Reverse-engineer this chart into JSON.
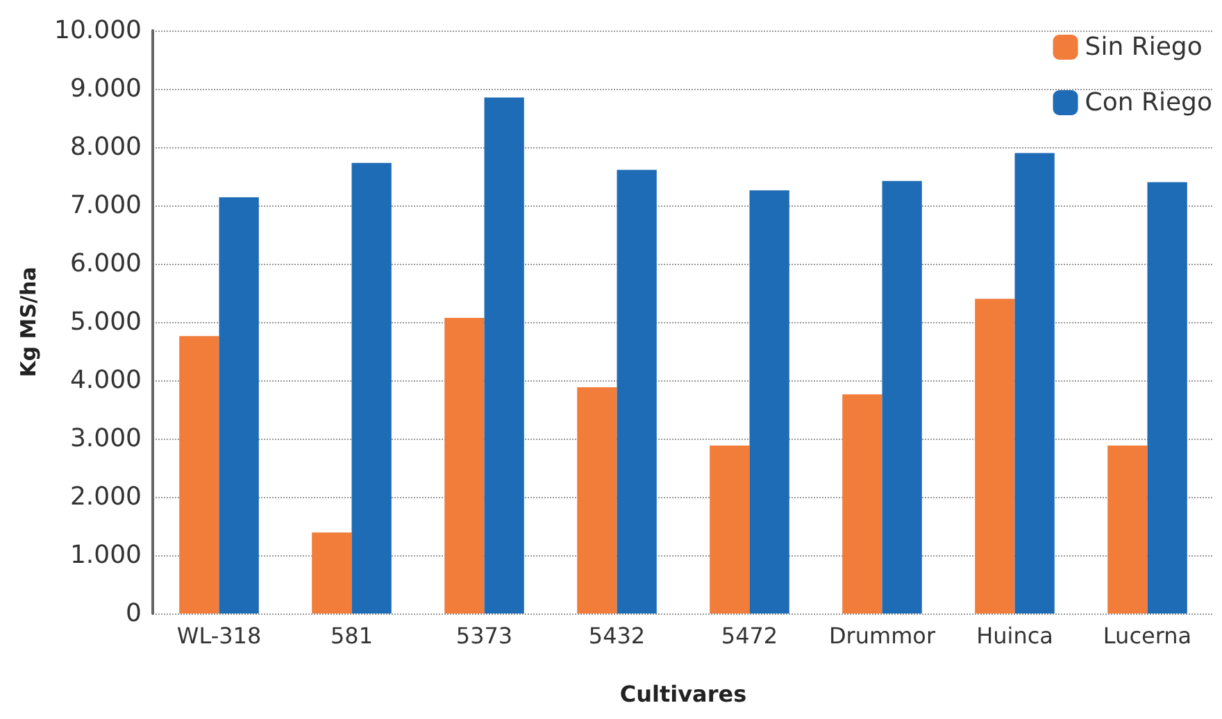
{
  "chart_data": {
    "type": "bar",
    "xlabel": "Cultivares",
    "ylabel": "Kg MS/ha",
    "categories": [
      "WL-318",
      "581",
      "5373",
      "5432",
      "5472",
      "Drummor",
      "Huinca",
      "Lucerna"
    ],
    "series": [
      {
        "name": "Sin Riego",
        "color": "#f27c3a",
        "values": [
          4760,
          1390,
          5070,
          3880,
          2880,
          3760,
          5400,
          2880
        ]
      },
      {
        "name": "Con Riego",
        "color": "#1e6cb5",
        "values": [
          7140,
          7730,
          8850,
          7610,
          7260,
          7420,
          7900,
          7400
        ]
      }
    ],
    "ylim": [
      0,
      10000
    ],
    "yticks": [
      0,
      {
        "value": 1000,
        "label": "1.000"
      },
      {
        "value": 2000,
        "label": "2.000"
      },
      {
        "value": 3000,
        "label": "3.000"
      },
      {
        "value": 4000,
        "label": "4.000"
      },
      {
        "value": 5000,
        "label": "5.000"
      },
      {
        "value": 6000,
        "label": "6.000"
      },
      {
        "value": 7000,
        "label": "7.000"
      },
      {
        "value": 8000,
        "label": "8.000"
      },
      {
        "value": 9000,
        "label": "9.000"
      },
      {
        "value": 10000,
        "label": "10.000"
      }
    ],
    "grid": "y",
    "legend": "top right"
  }
}
